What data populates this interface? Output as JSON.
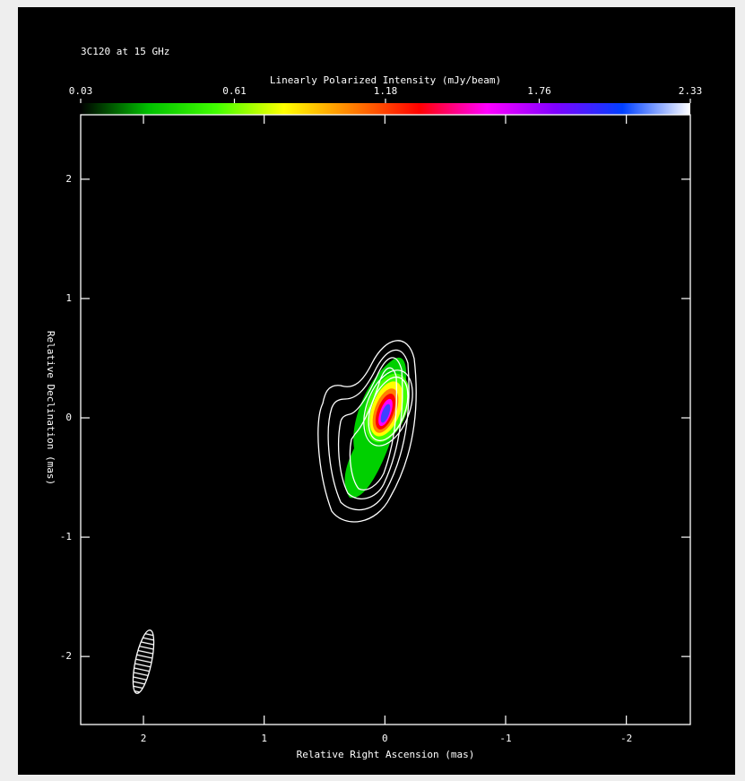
{
  "chart_data": {
    "type": "contour",
    "title": "3C120 at 15 GHz",
    "colorbar_label": "Linearly Polarized Intensity (mJy/beam)",
    "colorbar_lim": [
      0.03,
      2.33
    ],
    "colorbar_ticks": [
      0.03,
      0.61,
      1.18,
      1.76,
      2.33
    ],
    "colormap": [
      "#000000",
      "#00c000",
      "#40ff00",
      "#ffff00",
      "#ff8000",
      "#ff0000",
      "#ff00ff",
      "#8000ff",
      "#0040ff",
      "#ffffff"
    ],
    "x_label": "Relative Right Ascension (mas)",
    "y_label": "Relative Declination (mas)",
    "xlim": [
      2.52,
      -2.53
    ],
    "xticks": [
      2,
      1,
      0,
      -1,
      -2
    ],
    "ylim": [
      -2.57,
      2.54
    ],
    "yticks": [
      -2,
      -1,
      0,
      1,
      2
    ]
  }
}
